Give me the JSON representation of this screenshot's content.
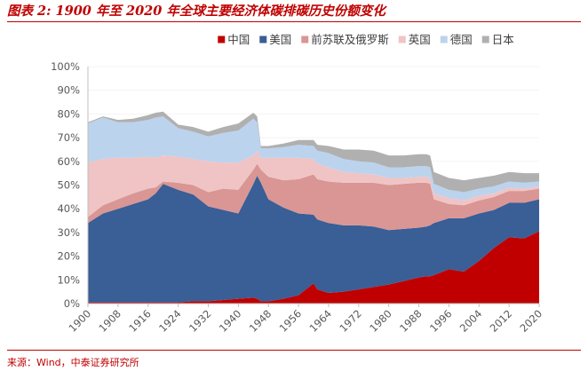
{
  "figure_title": "图表 2:  1900 年至 2020 年全球主要经济体碳排碳历史份额变化",
  "source_note": "来源：Wind，中泰证券研究所",
  "colors": {
    "china": "#c00000",
    "usa": "#3a5e96",
    "ussr": "#d99694",
    "uk": "#f0c4c4",
    "germany": "#bcd3ee",
    "japan": "#b0b0b0",
    "axis_text": "#595959",
    "axis_line": "#bfbfbf"
  },
  "chart_data": {
    "type": "area",
    "stacked": true,
    "legend_position": "top",
    "ylim": [
      0,
      100
    ],
    "y_tick_labels": [
      "0%",
      "10%",
      "20%",
      "30%",
      "40%",
      "50%",
      "60%",
      "70%",
      "80%",
      "90%",
      "100%"
    ],
    "x_tick_labels": [
      "1900",
      "1908",
      "1916",
      "1924",
      "1932",
      "1940",
      "1948",
      "1956",
      "1964",
      "1972",
      "1980",
      "1988",
      "1996",
      "2004",
      "2012",
      "2020"
    ],
    "years": [
      1900,
      1904,
      1908,
      1912,
      1916,
      1918,
      1920,
      1924,
      1928,
      1932,
      1936,
      1940,
      1944,
      1945,
      1946,
      1948,
      1952,
      1956,
      1960,
      1961,
      1964,
      1968,
      1972,
      1976,
      1980,
      1984,
      1988,
      1990,
      1991,
      1992,
      1996,
      2000,
      2004,
      2008,
      2012,
      2016,
      2020
    ],
    "series": [
      {
        "name": "中国",
        "color_key": "china",
        "values": [
          0.5,
          0.5,
          0.5,
          0.5,
          0.5,
          0.5,
          0.5,
          0.5,
          1.0,
          1.0,
          1.5,
          2.0,
          2.5,
          2.0,
          1.0,
          1.0,
          2.0,
          3.5,
          8.5,
          6.0,
          4.5,
          5.0,
          6.0,
          7.0,
          8.0,
          9.5,
          11.0,
          11.5,
          11.5,
          12.0,
          14.5,
          13.5,
          18.0,
          23.5,
          28.0,
          27.5,
          30.5
        ]
      },
      {
        "name": "美国",
        "color_key": "usa",
        "values": [
          33.5,
          37.5,
          39.5,
          41.5,
          43.5,
          46.0,
          50.0,
          47.5,
          45.0,
          40.0,
          38.0,
          36.0,
          48.0,
          52.0,
          50.0,
          43.0,
          38.5,
          34.5,
          29.0,
          29.5,
          29.5,
          28.0,
          27.0,
          25.5,
          23.0,
          22.0,
          21.0,
          21.0,
          21.5,
          22.0,
          21.5,
          22.5,
          20.0,
          16.0,
          14.5,
          15.0,
          13.5
        ]
      },
      {
        "name": "前苏联及俄罗斯",
        "color_key": "ussr",
        "values": [
          2.5,
          3.5,
          4.0,
          4.5,
          4.5,
          2.5,
          1.0,
          3.0,
          4.0,
          6.0,
          9.0,
          10.0,
          6.0,
          5.0,
          5.5,
          9.5,
          11.5,
          14.5,
          17.0,
          17.0,
          17.5,
          18.0,
          18.0,
          18.5,
          19.0,
          19.0,
          19.0,
          18.5,
          17.5,
          10.0,
          6.0,
          5.5,
          5.5,
          5.5,
          5.0,
          5.0,
          4.5
        ]
      },
      {
        "name": "英国",
        "color_key": "uk",
        "values": [
          23.0,
          19.5,
          17.5,
          15.0,
          13.5,
          12.5,
          11.0,
          11.0,
          11.0,
          13.0,
          11.0,
          11.5,
          6.0,
          5.5,
          5.0,
          8.0,
          9.5,
          9.0,
          6.5,
          6.5,
          6.0,
          4.5,
          4.0,
          3.5,
          3.0,
          2.5,
          2.5,
          2.5,
          2.5,
          2.5,
          2.5,
          2.0,
          2.0,
          1.5,
          1.5,
          1.0,
          1.0
        ]
      },
      {
        "name": "德国",
        "color_key": "germany",
        "values": [
          16.5,
          17.5,
          15.0,
          15.0,
          15.5,
          17.0,
          16.5,
          12.0,
          11.5,
          10.5,
          12.5,
          13.5,
          15.5,
          12.0,
          4.0,
          4.0,
          4.5,
          5.5,
          5.5,
          5.5,
          6.0,
          5.5,
          5.0,
          5.0,
          4.5,
          4.5,
          4.5,
          4.5,
          4.5,
          4.0,
          3.5,
          3.5,
          3.0,
          3.0,
          2.5,
          2.5,
          2.0
        ]
      },
      {
        "name": "日本",
        "color_key": "japan",
        "values": [
          0.5,
          0.5,
          1.0,
          1.5,
          2.0,
          2.0,
          2.0,
          1.5,
          2.0,
          2.0,
          2.5,
          3.0,
          2.5,
          2.5,
          1.0,
          1.0,
          1.5,
          2.0,
          2.5,
          2.5,
          3.0,
          4.0,
          5.0,
          5.0,
          5.0,
          5.0,
          5.0,
          5.0,
          5.0,
          5.0,
          5.0,
          5.0,
          4.5,
          4.5,
          4.0,
          4.0,
          3.5
        ]
      }
    ]
  }
}
